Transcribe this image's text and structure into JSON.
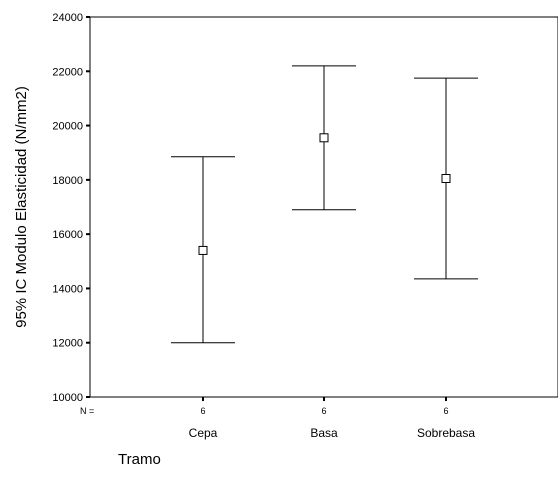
{
  "chart_data": {
    "type": "errorbar",
    "title": "",
    "xlabel": "Tramo",
    "ylabel": "95% IC Modulo Elasticidad (N/mm2)",
    "ylim": [
      10000,
      24000
    ],
    "yticks": [
      10000,
      12000,
      14000,
      16000,
      18000,
      20000,
      22000,
      24000
    ],
    "categories": [
      "Cepa",
      "Basa",
      "Sobrebasa"
    ],
    "n_label": "N =",
    "n_values": [
      "6",
      "6",
      "6"
    ],
    "mean": [
      15400,
      19550,
      18050
    ],
    "lower": [
      12000,
      16900,
      14350
    ],
    "upper": [
      18850,
      22200,
      21750
    ],
    "grid": false,
    "legend": "none"
  }
}
